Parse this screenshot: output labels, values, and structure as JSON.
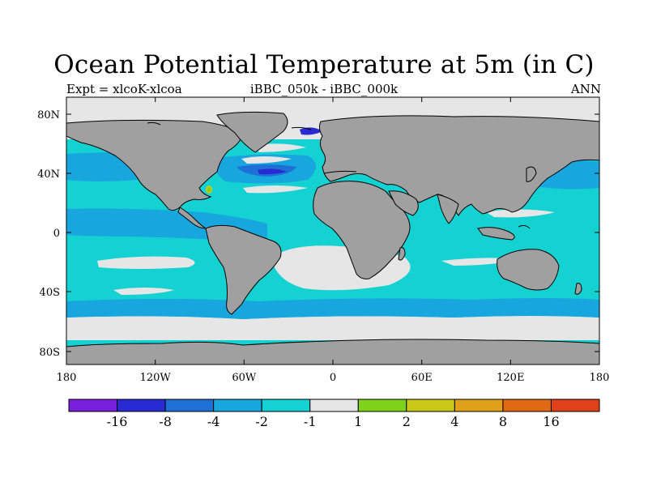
{
  "title": "Ocean Potential Temperature at 5m (in C)",
  "subtitle_left": "Expt = xlcoK-xlcoa",
  "subtitle_center": "iBBC_050k - iBBC_000k",
  "subtitle_right": "ANN",
  "lat_labels": [
    "80N",
    "40N",
    "0",
    "40S",
    "80S"
  ],
  "lon_labels": [
    "180",
    "120W",
    "60W",
    "0",
    "60E",
    "120E",
    "180"
  ],
  "colorbar": {
    "colors": [
      "#7a1fdc",
      "#2a2ad2",
      "#1e6fd6",
      "#18a6df",
      "#14d2d2",
      "#e6e6e6",
      "#7fd21a",
      "#c8c81a",
      "#e0a01a",
      "#e06a14",
      "#e0401a"
    ],
    "labels": [
      "-16",
      "-8",
      "-4",
      "-2",
      "-1",
      "1",
      "2",
      "4",
      "8",
      "16"
    ]
  },
  "colors": {
    "land": "#a0a0a0",
    "coast": "#000000"
  }
}
